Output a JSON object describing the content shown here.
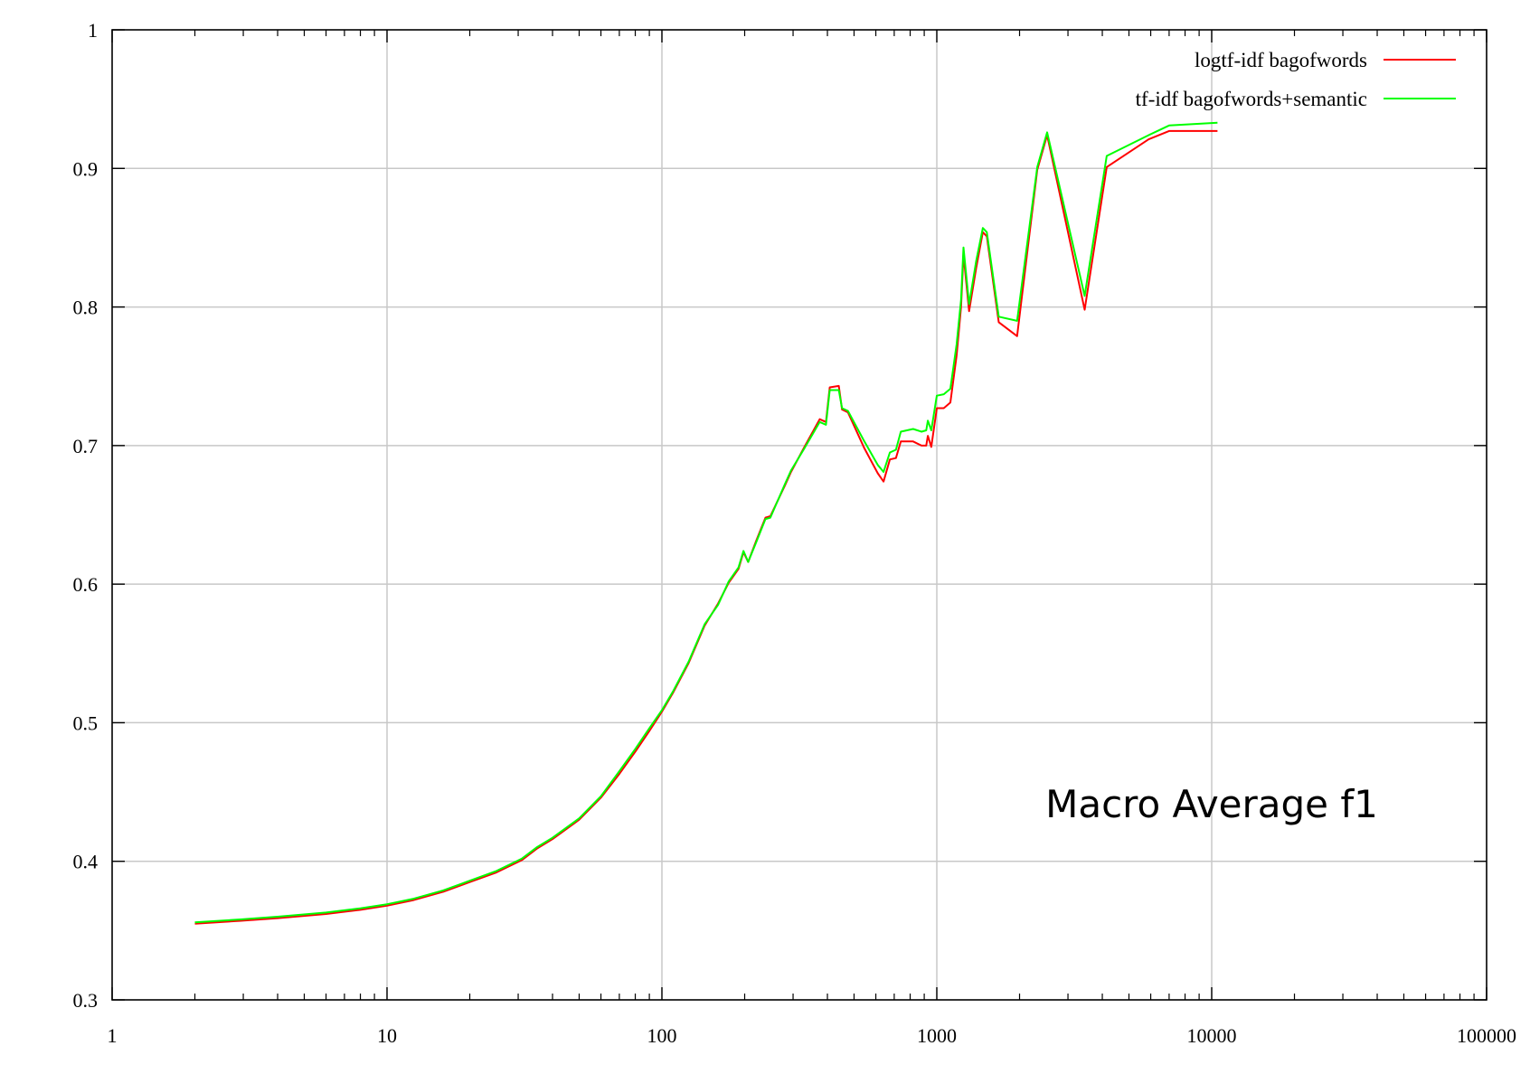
{
  "chart_data": {
    "type": "line",
    "title": "",
    "xlabel": "",
    "ylabel": "",
    "xscale": "log",
    "xlim": [
      1,
      100000
    ],
    "ylim": [
      0.3,
      1.0
    ],
    "grid": true,
    "legend_position": "top-right",
    "x_tick_labels": [
      "1",
      "10",
      "100",
      "1000",
      "10000",
      "100000"
    ],
    "y_tick_labels": [
      "0.3",
      "0.4",
      "0.5",
      "0.6",
      "0.7",
      "0.8",
      "0.9",
      "1"
    ],
    "annotation": "Macro Average f1",
    "series": [
      {
        "name": "logtf-idf bagofwords",
        "color": "#ff0000",
        "points": [
          [
            2,
            0.355
          ],
          [
            2.9,
            0.357
          ],
          [
            4,
            0.359
          ],
          [
            6,
            0.362
          ],
          [
            8,
            0.365
          ],
          [
            10,
            0.368
          ],
          [
            12.5,
            0.372
          ],
          [
            16,
            0.378
          ],
          [
            20,
            0.385
          ],
          [
            25,
            0.392
          ],
          [
            31,
            0.401
          ],
          [
            35,
            0.409
          ],
          [
            40,
            0.416
          ],
          [
            50,
            0.43
          ],
          [
            60,
            0.446
          ],
          [
            70,
            0.463
          ],
          [
            80,
            0.479
          ],
          [
            90,
            0.494
          ],
          [
            100,
            0.508
          ],
          [
            110,
            0.522
          ],
          [
            125,
            0.543
          ],
          [
            143,
            0.57
          ],
          [
            160,
            0.586
          ],
          [
            175,
            0.601
          ],
          [
            190,
            0.611
          ],
          [
            198,
            0.623
          ],
          [
            206,
            0.616
          ],
          [
            220,
            0.631
          ],
          [
            238,
            0.648
          ],
          [
            248,
            0.649
          ],
          [
            280,
            0.671
          ],
          [
            295,
            0.681
          ],
          [
            330,
            0.699
          ],
          [
            375,
            0.719
          ],
          [
            395,
            0.717
          ],
          [
            408,
            0.742
          ],
          [
            440,
            0.743
          ],
          [
            452,
            0.726
          ],
          [
            475,
            0.724
          ],
          [
            545,
            0.698
          ],
          [
            610,
            0.68
          ],
          [
            640,
            0.674
          ],
          [
            675,
            0.69
          ],
          [
            710,
            0.691
          ],
          [
            740,
            0.703
          ],
          [
            820,
            0.703
          ],
          [
            880,
            0.7
          ],
          [
            915,
            0.7
          ],
          [
            928,
            0.707
          ],
          [
            955,
            0.699
          ],
          [
            1000,
            0.727
          ],
          [
            1060,
            0.727
          ],
          [
            1120,
            0.731
          ],
          [
            1180,
            0.765
          ],
          [
            1225,
            0.8
          ],
          [
            1250,
            0.838
          ],
          [
            1310,
            0.797
          ],
          [
            1390,
            0.828
          ],
          [
            1470,
            0.854
          ],
          [
            1520,
            0.851
          ],
          [
            1680,
            0.789
          ],
          [
            1960,
            0.779
          ],
          [
            2320,
            0.899
          ],
          [
            2520,
            0.924
          ],
          [
            3450,
            0.798
          ],
          [
            4150,
            0.901
          ],
          [
            5900,
            0.921
          ],
          [
            7000,
            0.927
          ],
          [
            10500,
            0.927
          ]
        ]
      },
      {
        "name": "tf-idf bagofwords+semantic",
        "color": "#00ff00",
        "points": [
          [
            2,
            0.356
          ],
          [
            2.9,
            0.358
          ],
          [
            4,
            0.36
          ],
          [
            6,
            0.363
          ],
          [
            8,
            0.366
          ],
          [
            10,
            0.369
          ],
          [
            12.5,
            0.373
          ],
          [
            16,
            0.379
          ],
          [
            20,
            0.386
          ],
          [
            25,
            0.393
          ],
          [
            31,
            0.402
          ],
          [
            35,
            0.41
          ],
          [
            40,
            0.417
          ],
          [
            50,
            0.431
          ],
          [
            60,
            0.447
          ],
          [
            70,
            0.465
          ],
          [
            80,
            0.481
          ],
          [
            90,
            0.496
          ],
          [
            100,
            0.509
          ],
          [
            110,
            0.523
          ],
          [
            125,
            0.544
          ],
          [
            143,
            0.571
          ],
          [
            160,
            0.585
          ],
          [
            175,
            0.602
          ],
          [
            190,
            0.612
          ],
          [
            198,
            0.624
          ],
          [
            206,
            0.616
          ],
          [
            220,
            0.63
          ],
          [
            238,
            0.647
          ],
          [
            248,
            0.648
          ],
          [
            280,
            0.672
          ],
          [
            295,
            0.682
          ],
          [
            330,
            0.698
          ],
          [
            375,
            0.717
          ],
          [
            395,
            0.715
          ],
          [
            408,
            0.74
          ],
          [
            440,
            0.74
          ],
          [
            452,
            0.727
          ],
          [
            475,
            0.725
          ],
          [
            545,
            0.703
          ],
          [
            610,
            0.686
          ],
          [
            640,
            0.681
          ],
          [
            675,
            0.695
          ],
          [
            710,
            0.697
          ],
          [
            740,
            0.71
          ],
          [
            820,
            0.712
          ],
          [
            880,
            0.71
          ],
          [
            915,
            0.711
          ],
          [
            928,
            0.718
          ],
          [
            955,
            0.711
          ],
          [
            1000,
            0.736
          ],
          [
            1060,
            0.737
          ],
          [
            1120,
            0.741
          ],
          [
            1180,
            0.773
          ],
          [
            1225,
            0.805
          ],
          [
            1250,
            0.843
          ],
          [
            1310,
            0.802
          ],
          [
            1390,
            0.833
          ],
          [
            1470,
            0.857
          ],
          [
            1520,
            0.854
          ],
          [
            1680,
            0.793
          ],
          [
            1960,
            0.79
          ],
          [
            2320,
            0.901
          ],
          [
            2520,
            0.926
          ],
          [
            3450,
            0.808
          ],
          [
            4150,
            0.909
          ],
          [
            5900,
            0.924
          ],
          [
            7000,
            0.931
          ],
          [
            10500,
            0.933
          ]
        ]
      }
    ]
  }
}
